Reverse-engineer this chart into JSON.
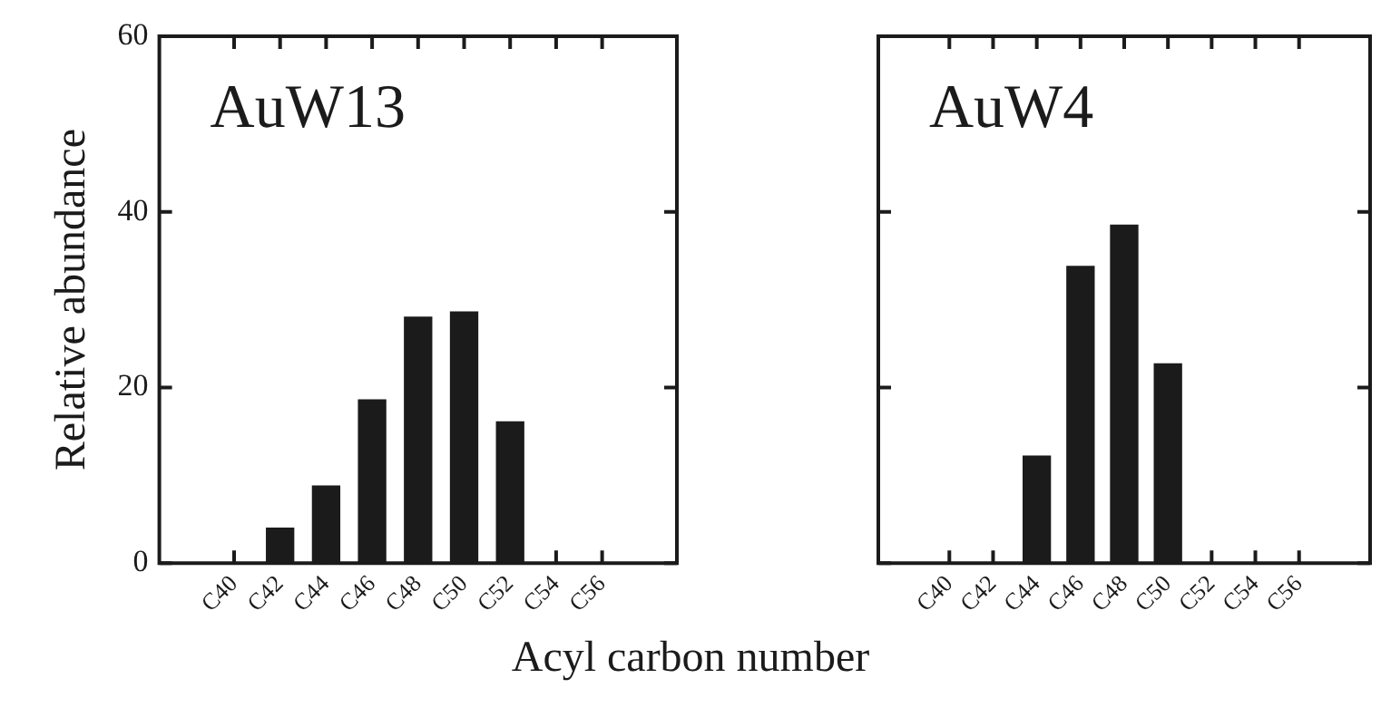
{
  "chart_data": [
    {
      "type": "bar",
      "title": "AuW13",
      "ylabel": "Relative abundance",
      "xlabel": "Acyl carbon number",
      "categories": [
        "C40",
        "C42",
        "C44",
        "C46",
        "C48",
        "C50",
        "C52",
        "C54",
        "C56"
      ],
      "values": [
        0,
        4,
        8.8,
        18.6,
        28,
        28.6,
        16.1,
        0,
        0
      ],
      "color": "#1b1b1b",
      "ylim": [
        0,
        60
      ],
      "yticks": [
        0,
        20,
        40,
        60
      ],
      "grid": false
    },
    {
      "type": "bar",
      "title": "AuW4",
      "categories": [
        "C40",
        "C42",
        "C44",
        "C46",
        "C48",
        "C50",
        "C52",
        "C54",
        "C56"
      ],
      "values": [
        0,
        0,
        12.2,
        33.8,
        38.5,
        22.7,
        0,
        0,
        0
      ],
      "color": "#1b1b1b",
      "ylim": [
        0,
        60
      ],
      "yticks": [
        0,
        20,
        40,
        60
      ],
      "grid": false,
      "tick_labels": "x"
    }
  ]
}
